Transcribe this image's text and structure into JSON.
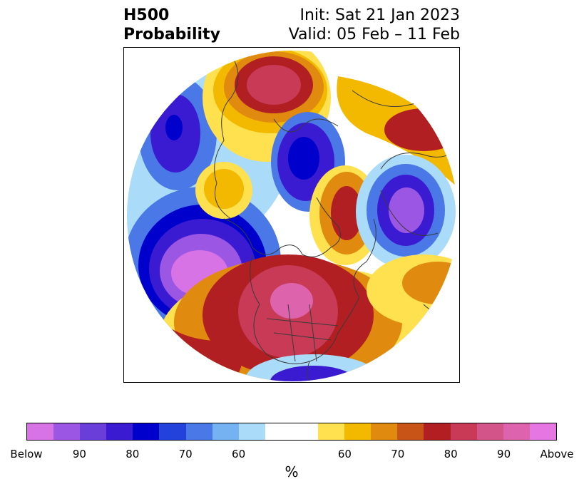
{
  "header": {
    "title_line1": "H500",
    "title_line2": "Probability",
    "init": "Init: Sat 21 Jan 2023",
    "valid": "Valid: 05 Feb – 11 Feb"
  },
  "colorbar": {
    "segments": [
      "#d873e6",
      "#9b57e3",
      "#6a3ed9",
      "#3a1bd2",
      "#0000cc",
      "#2341db",
      "#4a78e6",
      "#75b2f2",
      "#aadcfa",
      "#ffffff",
      "#ffe04f",
      "#f3b800",
      "#e08a10",
      "#c85418",
      "#b11f22",
      "#c83a55",
      "#d25488",
      "#dd63ad",
      "#e676e2"
    ],
    "segment_weights": [
      1,
      1,
      1,
      1,
      1,
      1,
      1,
      1,
      1,
      2,
      1,
      1,
      1,
      1,
      1,
      1,
      1,
      1,
      1
    ],
    "labels": [
      "Below",
      "90",
      "80",
      "70",
      "60",
      "60",
      "70",
      "80",
      "90",
      "Above"
    ],
    "unit": "%"
  },
  "map": {
    "colors": {
      "below_max": "#d873e6",
      "below_90": "#9b57e3",
      "below_80": "#3a1bd2",
      "below_70": "#0000cc",
      "below_60": "#4a78e6",
      "below_50": "#aadcfa",
      "above_50": "#ffe04f",
      "above_60": "#f3b800",
      "above_70": "#e08a10",
      "above_80": "#b11f22",
      "above_90": "#c83a55",
      "above_max": "#dd63ad",
      "coast": "#3a3a3a"
    }
  }
}
